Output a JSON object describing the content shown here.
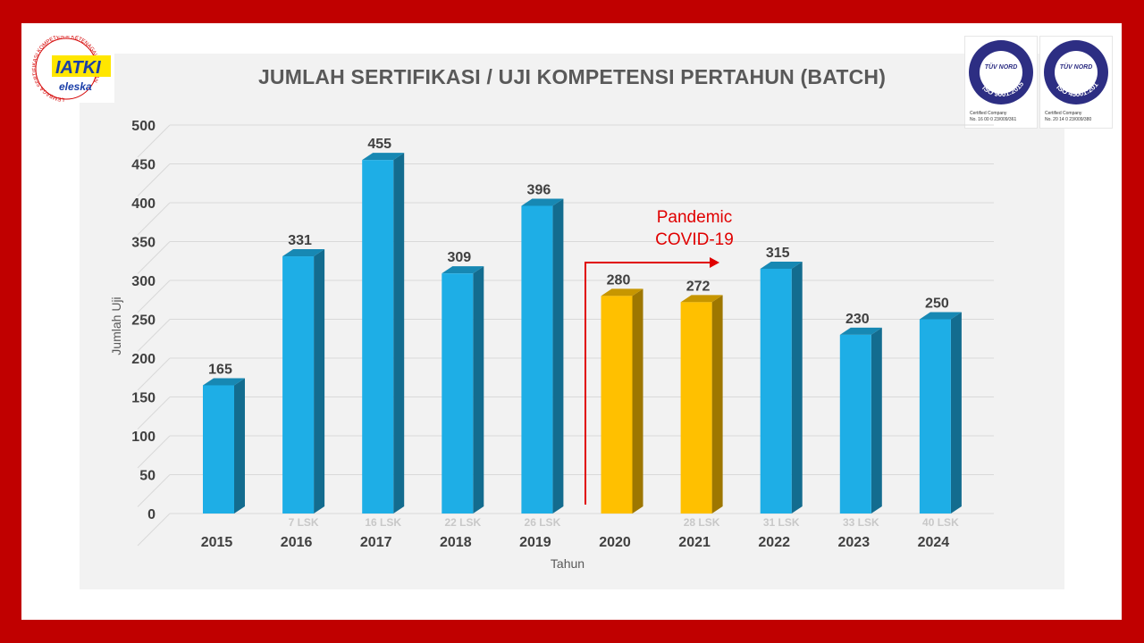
{
  "logos": {
    "left_main": "IATKI",
    "left_sub": "eleska",
    "left_ring_text": "LEMBAGA SERTIFIKASI KOMPETENSI KETENAGALISTRIKAN",
    "iso1_brand": "TÜV NORD",
    "iso1_standard": "ISO 9001:2015",
    "iso1_note": "Certified Company",
    "iso1_number": "No. 16 00 0 23/009/361",
    "iso2_brand": "TÜV NORD",
    "iso2_standard": "ISO 45001:2018",
    "iso2_note": "Certified Company",
    "iso2_number": "No. 20 14 0 23/009/380"
  },
  "chart_data": {
    "type": "bar",
    "title": "JUMLAH SERTIFIKASI / UJI KOMPETENSI PERTAHUN  (BATCH)",
    "xlabel": "Tahun",
    "ylabel": "Jumlah Uji",
    "ylim": [
      0,
      500
    ],
    "yticks": [
      0,
      50,
      100,
      150,
      200,
      250,
      300,
      350,
      400,
      450,
      500
    ],
    "grid": true,
    "categories": [
      "2015",
      "2016",
      "2017",
      "2018",
      "2019",
      "2020",
      "2021",
      "2022",
      "2023",
      "2024"
    ],
    "values": [
      165,
      331,
      455,
      309,
      396,
      280,
      272,
      315,
      230,
      250
    ],
    "lsk_labels": [
      "",
      "7 LSK",
      "16 LSK",
      "22 LSK",
      "26 LSK",
      "",
      "28 LSK",
      "31 LSK",
      "33 LSK",
      "40 LSK"
    ],
    "highlight_categories": [
      "2020",
      "2021"
    ],
    "colors": {
      "default": "#1eaee6",
      "highlight": "#ffc000",
      "annotation": "#e00000"
    },
    "annotation": {
      "line1": "Pandemic",
      "line2": "COVID-19"
    }
  }
}
